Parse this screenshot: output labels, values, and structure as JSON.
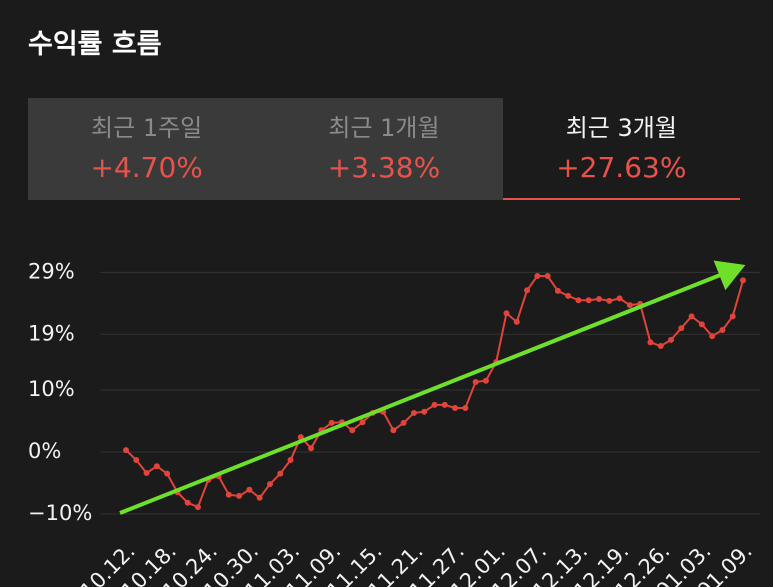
{
  "header": {
    "title": "수익률 흐름"
  },
  "tabs": [
    {
      "label": "최근 1주일",
      "value": "+4.70%"
    },
    {
      "label": "최근 1개월",
      "value": "+3.38%"
    },
    {
      "label": "최근 3개월",
      "value": "+27.63%"
    }
  ],
  "chart_data": {
    "type": "line",
    "color": "#e0443a",
    "grid": true,
    "ylim": [
      -12.6,
      31.8
    ],
    "yticks": [
      {
        "value": -10,
        "label": "−10%"
      },
      {
        "value": 0,
        "label": "0%"
      },
      {
        "value": 10,
        "label": "10%"
      },
      {
        "value": 19,
        "label": "19%"
      },
      {
        "value": 29,
        "label": "29%"
      }
    ],
    "categories": [
      "10.12.",
      null,
      null,
      null,
      "10.18.",
      null,
      null,
      null,
      "10.24.",
      null,
      null,
      null,
      "10.30.",
      null,
      null,
      null,
      "11.03.",
      null,
      null,
      null,
      "11.09.",
      null,
      null,
      null,
      "11.15.",
      null,
      null,
      null,
      "11.21.",
      null,
      null,
      null,
      "11.27.",
      null,
      null,
      null,
      "12.01.",
      null,
      null,
      null,
      "12.07.",
      null,
      null,
      null,
      "12.13.",
      null,
      null,
      null,
      "12.19.",
      null,
      null,
      null,
      "12.26.",
      null,
      null,
      null,
      "01.03.",
      null,
      null,
      null,
      "01.09."
    ],
    "values": [
      0.3,
      -1.3,
      -3.4,
      -2.3,
      -3.5,
      -6.5,
      -8.2,
      -8.9,
      -4.5,
      -3.9,
      -6.9,
      -7.1,
      -6.1,
      -7.4,
      -5.2,
      -3.5,
      -1.3,
      2.4,
      0.6,
      3.5,
      4.7,
      4.8,
      3.5,
      4.8,
      6.3,
      6.5,
      3.5,
      4.7,
      6.3,
      6.5,
      7.6,
      7.6,
      7.1,
      7.1,
      11.3,
      11.5,
      14.5,
      22.4,
      21.0,
      26.1,
      28.4,
      28.4,
      26.0,
      25.2,
      24.5,
      24.5,
      24.7,
      24.4,
      24.8,
      23.7,
      23.9,
      17.7,
      17.1,
      18.1,
      20.0,
      21.9,
      20.6,
      18.7,
      19.7,
      21.9,
      27.7
    ]
  }
}
